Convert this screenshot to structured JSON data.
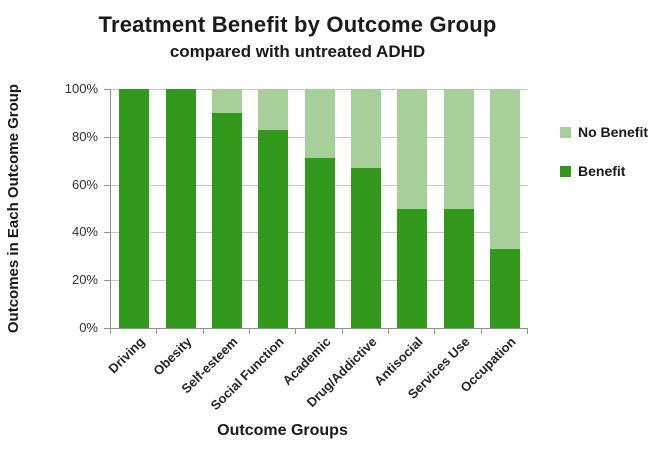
{
  "chart": {
    "title": "Treatment Benefit by Outcome Group",
    "subtitle": "compared with untreated ADHD",
    "x_axis_title": "Outcome Groups",
    "y_axis_title": "Outcomes in Each Outcome Group"
  },
  "legend": {
    "items": [
      {
        "label": "No Benefit",
        "color": "#A7CF99"
      },
      {
        "label": "Benefit",
        "color": "#33991C"
      }
    ]
  },
  "chart_data": {
    "type": "bar",
    "stacked": true,
    "title": "Treatment Benefit by Outcome Group",
    "subtitle": "compared with untreated ADHD",
    "xlabel": "Outcome Groups",
    "ylabel": "Outcomes in Each Outcome Group",
    "categories": [
      "Driving",
      "Obesity",
      "Self-esteem",
      "Social Function",
      "Academic",
      "Drug/Addictive",
      "Antisocial",
      "Services Use",
      "Occupation"
    ],
    "series": [
      {
        "name": "Benefit",
        "color": "#33991C",
        "values": [
          100,
          100,
          90,
          83,
          71,
          67,
          50,
          50,
          33
        ]
      },
      {
        "name": "No Benefit",
        "color": "#A7CF99",
        "values": [
          0,
          0,
          10,
          17,
          29,
          33,
          50,
          50,
          67
        ]
      }
    ],
    "ylim": [
      0,
      100
    ],
    "ytick_labels": [
      "0%",
      "20%",
      "40%",
      "60%",
      "80%",
      "100%"
    ],
    "grid": true,
    "legend_position": "right",
    "axis_color": "#8F8F8F",
    "grid_color": "#C9C9C9"
  }
}
